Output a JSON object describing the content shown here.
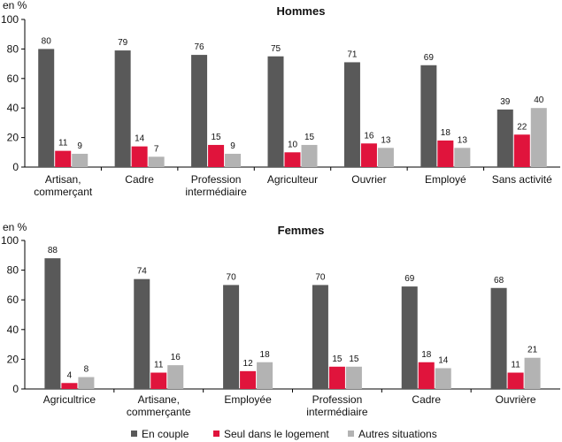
{
  "colors": {
    "en_couple": "#595959",
    "seul": "#e0143c",
    "autres": "#b3b3b3"
  },
  "legend": [
    {
      "key": "en_couple",
      "label": "En couple"
    },
    {
      "key": "seul",
      "label": "Seul dans le logement"
    },
    {
      "key": "autres",
      "label": "Autres situations"
    }
  ],
  "chart_data": [
    {
      "type": "bar",
      "title": "Hommes",
      "ylabel": "en %",
      "ylim": [
        0,
        100
      ],
      "yticks": [
        0,
        20,
        40,
        60,
        80,
        100
      ],
      "categories": [
        [
          "Artisan,",
          "commerçant"
        ],
        [
          "Cadre"
        ],
        [
          "Profession",
          "intermédiaire"
        ],
        [
          "Agriculteur"
        ],
        [
          "Ouvrier"
        ],
        [
          "Employé"
        ],
        [
          "Sans activité"
        ]
      ],
      "series": [
        {
          "name": "En couple",
          "key": "en_couple",
          "values": [
            80,
            79,
            76,
            75,
            71,
            69,
            39
          ]
        },
        {
          "name": "Seul dans le logement",
          "key": "seul",
          "values": [
            11,
            14,
            15,
            10,
            16,
            18,
            22
          ]
        },
        {
          "name": "Autres situations",
          "key": "autres",
          "values": [
            9,
            7,
            9,
            15,
            13,
            13,
            40
          ]
        }
      ]
    },
    {
      "type": "bar",
      "title": "Femmes",
      "ylabel": "en %",
      "ylim": [
        0,
        100
      ],
      "yticks": [
        0,
        20,
        40,
        60,
        80,
        100
      ],
      "categories": [
        [
          "Agricultrice"
        ],
        [
          "Artisane,",
          "commerçante"
        ],
        [
          "Employée"
        ],
        [
          "Profession",
          "intermédiaire"
        ],
        [
          "Cadre"
        ],
        [
          "Ouvrière"
        ]
      ],
      "series": [
        {
          "name": "En couple",
          "key": "en_couple",
          "values": [
            88,
            74,
            70,
            70,
            69,
            68
          ]
        },
        {
          "name": "Seul dans le logement",
          "key": "seul",
          "values": [
            4,
            11,
            12,
            15,
            18,
            11
          ]
        },
        {
          "name": "Autres situations",
          "key": "autres",
          "values": [
            8,
            16,
            18,
            15,
            14,
            21
          ]
        }
      ]
    }
  ]
}
